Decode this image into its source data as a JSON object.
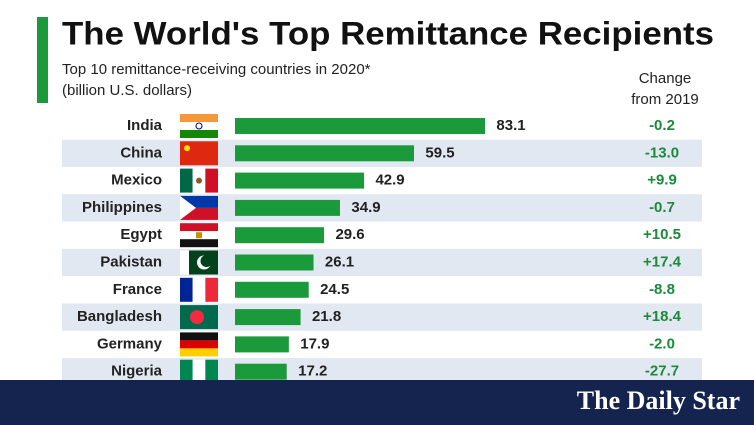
{
  "chart_data": {
    "type": "bar",
    "title": "The World's Top Remittance Recipients",
    "subtitle": [
      "Top 10 remittance-receiving countries in 2020*",
      "(billion U.S. dollars)"
    ],
    "categories": [
      "India",
      "China",
      "Mexico",
      "Philippines",
      "Egypt",
      "Pakistan",
      "France",
      "Bangladesh",
      "Germany",
      "Nigeria"
    ],
    "values": [
      83.1,
      59.5,
      42.9,
      34.9,
      29.6,
      26.1,
      24.5,
      21.8,
      17.9,
      17.2
    ],
    "color": "#1b9a3c",
    "change": {
      "title": [
        "Change",
        "from 2019"
      ],
      "values": [
        -0.2,
        -13.0,
        9.9,
        -0.7,
        10.5,
        17.4,
        -8.8,
        18.4,
        -2.0,
        -27.7
      ],
      "value_labels": [
        "-0.2",
        "-13.0",
        "+9.9",
        "-0.7",
        "+10.5",
        "+17.4",
        "-8.8",
        "+18.4",
        "-2.0",
        "-27.7"
      ],
      "color": "#1b8a3a"
    }
  },
  "footer": {
    "brand": "The Daily Star"
  }
}
